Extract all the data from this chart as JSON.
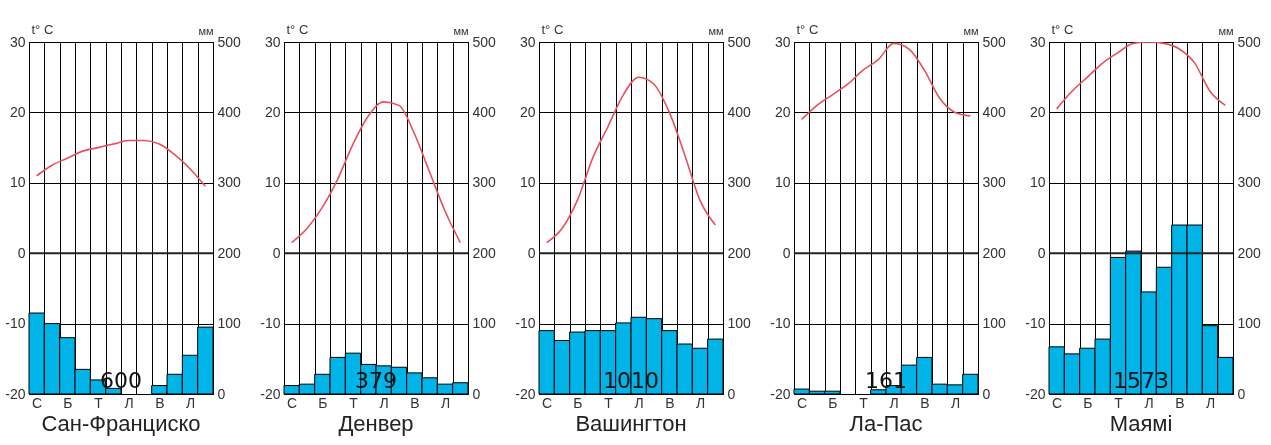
{
  "chart_data": [
    {
      "type": "bar",
      "title": "Сан-Франциско",
      "ylabel": "t° C",
      "y2label": "мм",
      "categories": [
        "С",
        null,
        "Б",
        null,
        "Т",
        null,
        "Л",
        null,
        "В",
        null,
        "Л",
        null
      ],
      "ylim": [
        -20,
        30
      ],
      "yticks": [
        -20,
        -10,
        0,
        10,
        20,
        30
      ],
      "y2lim": [
        0,
        500
      ],
      "y2ticks": [
        0,
        100,
        200,
        300,
        400,
        500
      ],
      "grid": true,
      "ref_lines": [
        {
          "axis": "y",
          "value": 0,
          "color": "#222222"
        }
      ],
      "annotations": [
        "600"
      ],
      "series": [
        {
          "axis": "y2",
          "color": "#00b4e8",
          "values": [
            115,
            100,
            80,
            35,
            20,
            8,
            0,
            0,
            12,
            28,
            55,
            95
          ]
        },
        {
          "type": "line",
          "color": "#e8505b",
          "values": [
            11,
            12.5,
            13.5,
            14.5,
            15,
            15.5,
            16,
            16,
            15.5,
            14,
            12,
            9.5
          ]
        }
      ]
    },
    {
      "type": "bar",
      "title": "Денвер",
      "ylabel": "t° C",
      "y2label": "мм",
      "categories": [
        "С",
        null,
        "Б",
        null,
        "Т",
        null,
        "Л",
        null,
        "В",
        null,
        "Л",
        null
      ],
      "ylim": [
        -20,
        30
      ],
      "yticks": [
        -20,
        -10,
        0,
        10,
        20,
        30
      ],
      "y2lim": [
        0,
        500
      ],
      "y2ticks": [
        0,
        100,
        200,
        300,
        400,
        500
      ],
      "grid": true,
      "ref_lines": [
        {
          "axis": "y",
          "value": 0,
          "color": "#222222"
        }
      ],
      "annotations": [
        "379"
      ],
      "series": [
        {
          "axis": "y2",
          "color": "#00b4e8",
          "values": [
            12,
            14,
            28,
            52,
            58,
            42,
            40,
            38,
            30,
            23,
            14,
            16
          ]
        },
        {
          "type": "line",
          "color": "#e8505b",
          "values": [
            1.5,
            3.5,
            6.5,
            10.5,
            15.5,
            19.5,
            21.5,
            21,
            17,
            11.5,
            6,
            1.5
          ]
        }
      ]
    },
    {
      "type": "bar",
      "title": "Вашингтон",
      "ylabel": "t° C",
      "y2label": "мм",
      "categories": [
        "С",
        null,
        "Б",
        null,
        "Т",
        null,
        "Л",
        null,
        "В",
        null,
        "Л",
        null
      ],
      "ylim": [
        -20,
        30
      ],
      "yticks": [
        -20,
        -10,
        0,
        10,
        20,
        30
      ],
      "y2lim": [
        0,
        500
      ],
      "y2ticks": [
        0,
        100,
        200,
        300,
        400,
        500
      ],
      "grid": true,
      "ref_lines": [
        {
          "axis": "y",
          "value": 0,
          "color": "#222222"
        }
      ],
      "annotations": [
        "1010"
      ],
      "series": [
        {
          "axis": "y2",
          "color": "#00b4e8",
          "values": [
            90,
            76,
            88,
            90,
            90,
            101,
            109,
            107,
            90,
            71,
            65,
            78
          ]
        },
        {
          "type": "line",
          "color": "#e8505b",
          "values": [
            1.5,
            3.5,
            7.5,
            13.5,
            18,
            22.5,
            25,
            24,
            20,
            14,
            7.5,
            4
          ]
        }
      ]
    },
    {
      "type": "bar",
      "title": "Ла-Пас",
      "ylabel": "t° C",
      "y2label": "мм",
      "categories": [
        "С",
        null,
        "Б",
        null,
        "Т",
        null,
        "Л",
        null,
        "В",
        null,
        "Л",
        null
      ],
      "ylim": [
        -20,
        30
      ],
      "yticks": [
        -20,
        -10,
        0,
        10,
        20,
        30
      ],
      "y2lim": [
        0,
        500
      ],
      "y2ticks": [
        0,
        100,
        200,
        300,
        400,
        500
      ],
      "grid": true,
      "ref_lines": [
        {
          "axis": "y",
          "value": 0,
          "color": "#222222"
        }
      ],
      "annotations": [
        "161"
      ],
      "series": [
        {
          "axis": "y2",
          "color": "#00b4e8",
          "values": [
            7,
            4,
            4,
            0,
            0,
            6,
            12,
            41,
            52,
            14,
            13,
            28
          ]
        },
        {
          "type": "line",
          "color": "#e8505b",
          "values": [
            19,
            21,
            22.5,
            24,
            26,
            27.5,
            29.8,
            29,
            26,
            22,
            20,
            19.5
          ]
        }
      ]
    },
    {
      "type": "bar",
      "title": "Маямі",
      "ylabel": "t° C",
      "y2label": "мм",
      "categories": [
        "С",
        null,
        "Б",
        null,
        "Т",
        null,
        "Л",
        null,
        "В",
        null,
        "Л",
        null
      ],
      "ylim": [
        -20,
        30
      ],
      "yticks": [
        -20,
        -10,
        0,
        10,
        20,
        30
      ],
      "y2lim": [
        0,
        500
      ],
      "y2ticks": [
        0,
        100,
        200,
        300,
        400,
        500
      ],
      "grid": true,
      "ref_lines": [
        {
          "axis": "y",
          "value": 0,
          "color": "#222222"
        }
      ],
      "annotations": [
        "1573"
      ],
      "series": [
        {
          "axis": "y2",
          "color": "#00b4e8",
          "values": [
            67,
            57,
            65,
            78,
            194,
            203,
            145,
            180,
            240,
            240,
            97,
            52
          ]
        },
        {
          "type": "line",
          "color": "#e8505b",
          "values": [
            20.5,
            23,
            25,
            27,
            28.5,
            29.8,
            30,
            29.8,
            29,
            27,
            23,
            21
          ]
        }
      ]
    }
  ]
}
